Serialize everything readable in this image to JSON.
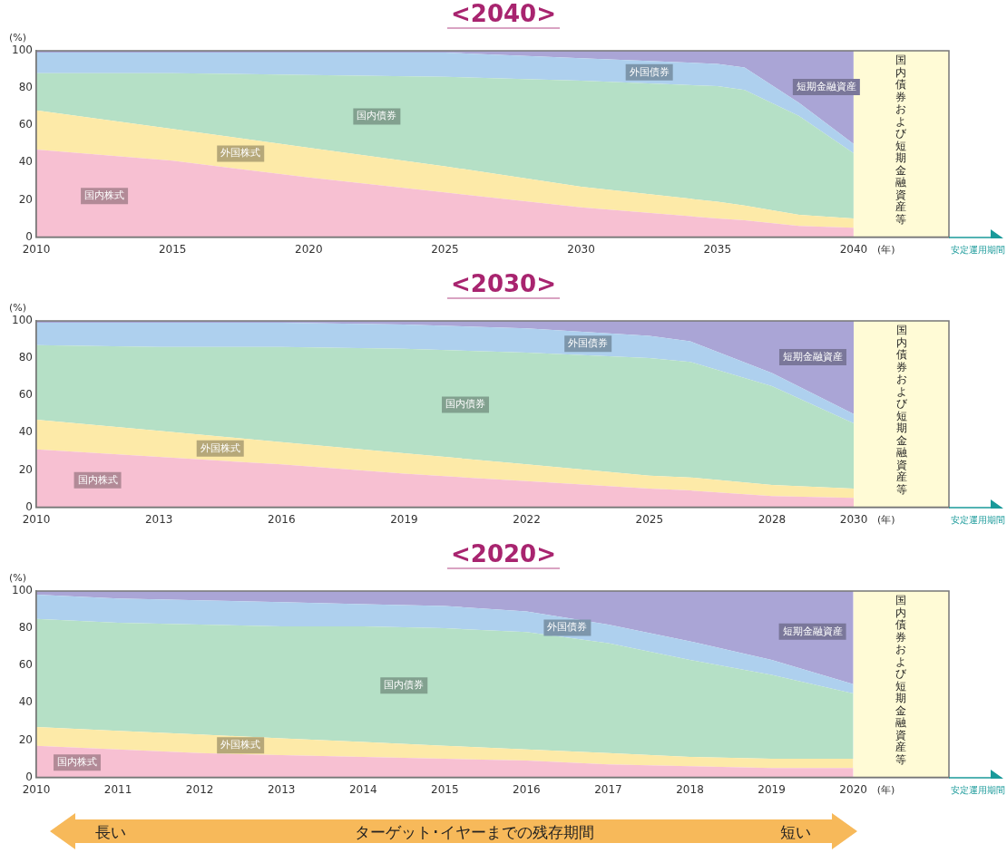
{
  "chart_data": [
    {
      "type": "area",
      "title": "<2040>",
      "ylabel": "(%)",
      "xlabel": "(年)",
      "stacked": true,
      "x": [
        2010,
        2015,
        2020,
        2025,
        2030,
        2035,
        2036,
        2038,
        2040
      ],
      "xlim": [
        2010,
        2043.5
      ],
      "xticks": [
        2010,
        2015,
        2020,
        2025,
        2030,
        2035,
        2040
      ],
      "ylim": [
        0,
        100
      ],
      "yticks": [
        0,
        20,
        40,
        60,
        80,
        100
      ],
      "grid": false,
      "legend": false,
      "series": [
        {
          "name": "国内株式",
          "color": "#f7c0d2",
          "values": [
            47,
            41,
            32,
            24,
            16,
            10,
            9,
            6,
            5
          ]
        },
        {
          "name": "外国株式",
          "color": "#fdeaa8",
          "values": [
            21,
            17,
            16,
            14,
            11,
            9,
            8,
            6,
            5
          ]
        },
        {
          "name": "国内債券",
          "color": "#b5e0c6",
          "values": [
            20,
            30,
            39,
            48,
            57,
            62,
            62,
            53,
            35
          ]
        },
        {
          "name": "外国債券",
          "color": "#aed0ee",
          "values": [
            11,
            11,
            12,
            13,
            12,
            12,
            12,
            7,
            5
          ]
        },
        {
          "name": "短期金融資産",
          "color": "#aaa5d6",
          "values": [
            1,
            1,
            1,
            1,
            4,
            7,
            9,
            28,
            50
          ]
        }
      ],
      "bands": [
        {
          "axis": "x",
          "from": 2040,
          "to": 2043.5,
          "label": "国内債券および短期金融資産等",
          "color": "#fffbd6"
        }
      ],
      "annotations": [
        "安定運用期間"
      ]
    },
    {
      "type": "area",
      "title": "<2030>",
      "ylabel": "(%)",
      "xlabel": "(年)",
      "stacked": true,
      "x": [
        2010,
        2013,
        2016,
        2019,
        2022,
        2025,
        2026,
        2028,
        2030
      ],
      "xlim": [
        2010,
        2032.33
      ],
      "xticks": [
        2010,
        2013,
        2016,
        2019,
        2022,
        2025,
        2028,
        2030
      ],
      "ylim": [
        0,
        100
      ],
      "yticks": [
        0,
        20,
        40,
        60,
        80,
        100
      ],
      "grid": false,
      "legend": false,
      "series": [
        {
          "name": "国内株式",
          "color": "#f7c0d2",
          "values": [
            31,
            27,
            23,
            18,
            14,
            10,
            9,
            6,
            5
          ]
        },
        {
          "name": "外国株式",
          "color": "#fdeaa8",
          "values": [
            16,
            14,
            12,
            11,
            9,
            7,
            7,
            6,
            5
          ]
        },
        {
          "name": "国内債券",
          "color": "#b5e0c6",
          "values": [
            40,
            45,
            51,
            56,
            60,
            63,
            62,
            53,
            35
          ]
        },
        {
          "name": "外国債券",
          "color": "#aed0ee",
          "values": [
            12,
            13,
            13,
            13,
            13,
            12,
            11,
            7,
            5
          ]
        },
        {
          "name": "短期金融資産",
          "color": "#aaa5d6",
          "values": [
            1,
            1,
            1,
            2,
            4,
            8,
            11,
            28,
            50
          ]
        }
      ],
      "bands": [
        {
          "axis": "x",
          "from": 2030,
          "to": 2032.33,
          "label": "国内債券および短期金融資産等",
          "color": "#fffbd6"
        }
      ],
      "annotations": [
        "安定運用期間"
      ]
    },
    {
      "type": "area",
      "title": "<2020>",
      "ylabel": "(%)",
      "xlabel": "(年)",
      "stacked": true,
      "x": [
        2010,
        2011,
        2012,
        2013,
        2014,
        2015,
        2016,
        2017,
        2018,
        2019,
        2020
      ],
      "xlim": [
        2010,
        2021.17
      ],
      "xticks": [
        2010,
        2011,
        2012,
        2013,
        2014,
        2015,
        2016,
        2017,
        2018,
        2019,
        2020
      ],
      "ylim": [
        0,
        100
      ],
      "yticks": [
        0,
        20,
        40,
        60,
        80,
        100
      ],
      "grid": false,
      "legend": false,
      "series": [
        {
          "name": "国内株式",
          "color": "#f7c0d2",
          "values": [
            17,
            15,
            13,
            12,
            11,
            10,
            9,
            7,
            6,
            5,
            5
          ]
        },
        {
          "name": "外国株式",
          "color": "#fdeaa8",
          "values": [
            10,
            10,
            10,
            9,
            8,
            7,
            6,
            6,
            5,
            5,
            5
          ]
        },
        {
          "name": "国内債券",
          "color": "#b5e0c6",
          "values": [
            58,
            58,
            59,
            60,
            62,
            63,
            63,
            59,
            52,
            45,
            35
          ]
        },
        {
          "name": "外国債券",
          "color": "#aed0ee",
          "values": [
            13,
            13,
            13,
            13,
            12,
            12,
            11,
            10,
            10,
            8,
            5
          ]
        },
        {
          "name": "短期金融資産",
          "color": "#aaa5d6",
          "values": [
            2,
            4,
            5,
            6,
            7,
            8,
            11,
            18,
            27,
            37,
            50
          ]
        }
      ],
      "bands": [
        {
          "axis": "x",
          "from": 2020,
          "to": 2021.17,
          "label": "国内債券および短期金融資産等",
          "color": "#fffbd6"
        }
      ],
      "annotations": [
        "安定運用期間",
        "長い",
        "ターゲット･イヤーまでの残存期間",
        "短い"
      ]
    }
  ]
}
